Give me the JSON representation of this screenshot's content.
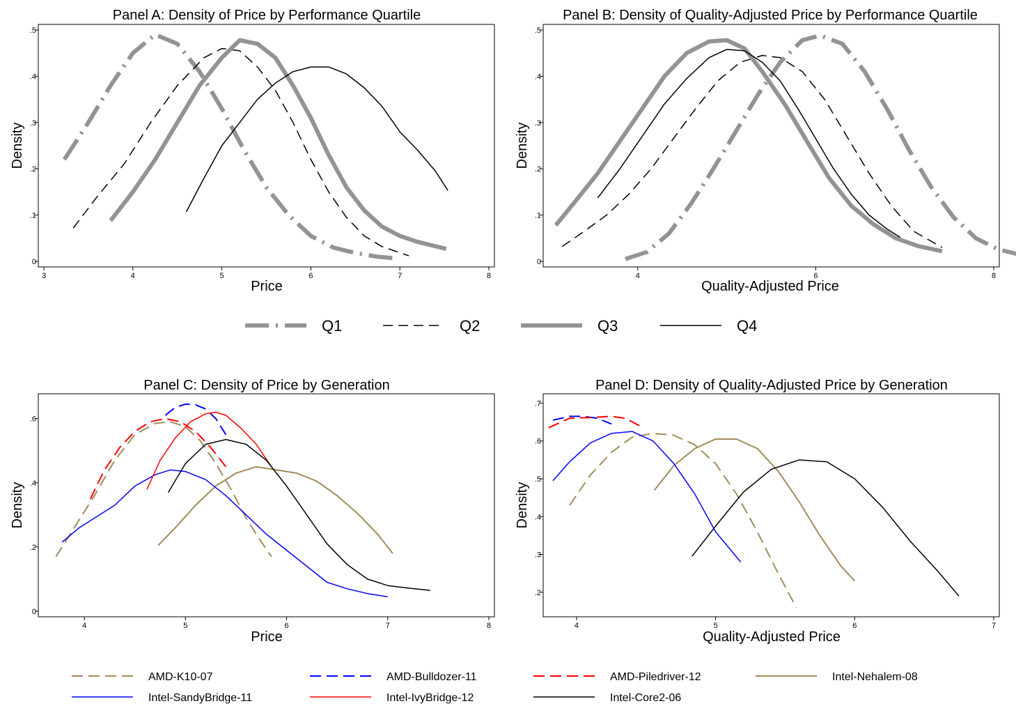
{
  "colors": {
    "gray": "#939393",
    "black": "#000000",
    "olive": "#a08b5b",
    "blue": "#0000ff",
    "red": "#ff0000"
  },
  "legend_top": [
    {
      "label": "Q1",
      "style": "q1"
    },
    {
      "label": "Q2",
      "style": "q2"
    },
    {
      "label": "Q3",
      "style": "q3"
    },
    {
      "label": "Q4",
      "style": "q4"
    }
  ],
  "legend_bottom": [
    {
      "label": "AMD-K10-07",
      "style": "k10"
    },
    {
      "label": "AMD-Bulldozer-11",
      "style": "bull"
    },
    {
      "label": "AMD-Piledriver-12",
      "style": "pile"
    },
    {
      "label": "Intel-Nehalem-08",
      "style": "neh"
    },
    {
      "label": "Intel-SandyBridge-11",
      "style": "sandy"
    },
    {
      "label": "Intel-IvyBridge-12",
      "style": "ivy"
    },
    {
      "label": "Intel-Core2-06",
      "style": "core2"
    }
  ],
  "chart_data": [
    {
      "panel": "A",
      "type": "line",
      "title": "Panel A: Density of Price by Performance Quartile",
      "xlabel": "Price",
      "ylabel": "Density",
      "xlim": [
        3,
        8
      ],
      "ylim": [
        0,
        0.5
      ],
      "xticks": [
        3,
        4,
        5,
        6,
        7,
        8
      ],
      "xticklabels": [
        "3",
        "4",
        "5",
        "6",
        "7",
        "8"
      ],
      "yticks": [
        0,
        0.1,
        0.2,
        0.3,
        0.4,
        0.5
      ],
      "yticklabels": [
        "0",
        ".1",
        ".2",
        ".3",
        ".4",
        ".5"
      ],
      "series": [
        {
          "name": "Q1",
          "style": "q1",
          "x": [
            3.23,
            3.5,
            3.75,
            4.0,
            4.25,
            4.5,
            4.75,
            5.0,
            5.25,
            5.5,
            5.75,
            6.0,
            6.25,
            6.5,
            6.75,
            6.93
          ],
          "y": [
            0.22,
            0.3,
            0.38,
            0.45,
            0.49,
            0.47,
            0.41,
            0.33,
            0.24,
            0.16,
            0.1,
            0.055,
            0.03,
            0.018,
            0.01,
            0.007
          ]
        },
        {
          "name": "Q2",
          "style": "q2",
          "x": [
            3.33,
            3.6,
            3.9,
            4.2,
            4.5,
            4.8,
            5.0,
            5.2,
            5.4,
            5.6,
            5.8,
            6.0,
            6.2,
            6.4,
            6.6,
            6.8,
            7.1
          ],
          "y": [
            0.072,
            0.14,
            0.21,
            0.3,
            0.38,
            0.44,
            0.46,
            0.455,
            0.42,
            0.37,
            0.3,
            0.22,
            0.15,
            0.095,
            0.055,
            0.032,
            0.012
          ]
        },
        {
          "name": "Q3",
          "style": "q3",
          "x": [
            3.75,
            4.0,
            4.25,
            4.5,
            4.75,
            5.0,
            5.2,
            5.4,
            5.6,
            5.8,
            6.0,
            6.2,
            6.4,
            6.6,
            6.8,
            7.0,
            7.2,
            7.52
          ],
          "y": [
            0.088,
            0.15,
            0.22,
            0.3,
            0.38,
            0.44,
            0.478,
            0.47,
            0.44,
            0.38,
            0.31,
            0.23,
            0.16,
            0.11,
            0.075,
            0.055,
            0.042,
            0.027
          ]
        },
        {
          "name": "Q4",
          "style": "q4",
          "x": [
            4.6,
            4.8,
            5.0,
            5.2,
            5.4,
            5.6,
            5.8,
            6.0,
            6.2,
            6.4,
            6.6,
            6.8,
            7.0,
            7.2,
            7.4,
            7.54
          ],
          "y": [
            0.107,
            0.18,
            0.25,
            0.3,
            0.35,
            0.385,
            0.41,
            0.42,
            0.42,
            0.405,
            0.375,
            0.335,
            0.28,
            0.24,
            0.195,
            0.153
          ]
        }
      ]
    },
    {
      "panel": "B",
      "type": "line",
      "title": "Panel B: Density of Quality-Adjusted Price by Performance Quartile",
      "xlabel": "Quality-Adjusted Price",
      "ylabel": "Density",
      "xlim": [
        3.0,
        8.0
      ],
      "ylim": [
        0,
        0.5
      ],
      "xticks": [
        4,
        6,
        8
      ],
      "xticklabels": [
        "4",
        "6",
        "8"
      ],
      "yticks": [
        0,
        0.1,
        0.2,
        0.3,
        0.4,
        0.5
      ],
      "yticklabels": [
        "0",
        ".1",
        ".2",
        ".3",
        ".4",
        ".5"
      ],
      "series": [
        {
          "name": "Q1",
          "style": "q1",
          "x": [
            3.86,
            4.1,
            4.35,
            4.6,
            4.85,
            5.1,
            5.35,
            5.6,
            5.85,
            6.05,
            6.3,
            6.55,
            6.8,
            7.05,
            7.3,
            7.55,
            7.8,
            8.05,
            8.45
          ],
          "y": [
            0.005,
            0.02,
            0.06,
            0.125,
            0.2,
            0.28,
            0.36,
            0.43,
            0.478,
            0.488,
            0.47,
            0.41,
            0.33,
            0.24,
            0.16,
            0.095,
            0.05,
            0.026,
            0.007
          ]
        },
        {
          "name": "Q2",
          "style": "q2",
          "x": [
            3.15,
            3.4,
            3.65,
            3.9,
            4.15,
            4.4,
            4.65,
            4.9,
            5.15,
            5.4,
            5.6,
            5.85,
            6.1,
            6.35,
            6.6,
            6.85,
            7.1,
            7.42
          ],
          "y": [
            0.032,
            0.065,
            0.1,
            0.145,
            0.2,
            0.265,
            0.33,
            0.39,
            0.43,
            0.445,
            0.44,
            0.41,
            0.35,
            0.27,
            0.19,
            0.12,
            0.065,
            0.03
          ]
        },
        {
          "name": "Q3",
          "style": "q3",
          "x": [
            3.08,
            3.3,
            3.55,
            3.8,
            4.05,
            4.3,
            4.55,
            4.8,
            5.0,
            5.2,
            5.4,
            5.65,
            5.9,
            6.15,
            6.4,
            6.65,
            6.9,
            7.15,
            7.42
          ],
          "y": [
            0.078,
            0.13,
            0.19,
            0.26,
            0.33,
            0.4,
            0.45,
            0.475,
            0.478,
            0.46,
            0.41,
            0.34,
            0.26,
            0.18,
            0.12,
            0.08,
            0.05,
            0.033,
            0.022
          ]
        },
        {
          "name": "Q4",
          "style": "q4",
          "x": [
            3.55,
            3.8,
            4.05,
            4.3,
            4.55,
            4.8,
            5.0,
            5.2,
            5.4,
            5.6,
            5.8,
            6.0,
            6.2,
            6.4,
            6.6,
            6.8,
            6.95
          ],
          "y": [
            0.137,
            0.2,
            0.27,
            0.34,
            0.395,
            0.44,
            0.458,
            0.455,
            0.43,
            0.39,
            0.33,
            0.265,
            0.2,
            0.145,
            0.1,
            0.07,
            0.052
          ]
        }
      ]
    },
    {
      "panel": "C",
      "type": "line",
      "title": "Panel C: Density of Price by Generation",
      "xlabel": "Price",
      "ylabel": "Density",
      "xlim": [
        3.6,
        8.0
      ],
      "ylim": [
        0,
        0.66
      ],
      "xticks": [
        4,
        5,
        6,
        7,
        8
      ],
      "xticklabels": [
        "4",
        "5",
        "6",
        "7",
        "8"
      ],
      "yticks": [
        0,
        0.2,
        0.4,
        0.6
      ],
      "yticklabels": [
        "0",
        ".2",
        ".4",
        ".6"
      ],
      "series": [
        {
          "name": "AMD-K10-07",
          "style": "k10",
          "x": [
            3.72,
            3.9,
            4.1,
            4.3,
            4.5,
            4.7,
            4.85,
            5.0,
            5.15,
            5.3,
            5.45,
            5.6,
            5.72,
            5.85
          ],
          "y": [
            0.17,
            0.26,
            0.36,
            0.47,
            0.55,
            0.585,
            0.59,
            0.575,
            0.53,
            0.46,
            0.38,
            0.29,
            0.23,
            0.17
          ]
        },
        {
          "name": "AMD-Bulldozer-11",
          "style": "bull",
          "x": [
            4.8,
            4.9,
            5.0,
            5.1,
            5.2,
            5.3,
            5.4
          ],
          "y": [
            0.61,
            0.635,
            0.645,
            0.643,
            0.63,
            0.6,
            0.55
          ]
        },
        {
          "name": "AMD-Piledriver-12",
          "style": "pile",
          "x": [
            4.06,
            4.2,
            4.35,
            4.5,
            4.65,
            4.8,
            4.95,
            5.1,
            5.25,
            5.4
          ],
          "y": [
            0.35,
            0.44,
            0.51,
            0.56,
            0.59,
            0.6,
            0.59,
            0.56,
            0.51,
            0.45
          ]
        },
        {
          "name": "Intel-Nehalem-08",
          "style": "neh",
          "x": [
            4.73,
            4.9,
            5.1,
            5.3,
            5.5,
            5.7,
            5.9,
            6.1,
            6.3,
            6.5,
            6.7,
            6.9,
            7.05
          ],
          "y": [
            0.205,
            0.26,
            0.33,
            0.39,
            0.43,
            0.45,
            0.44,
            0.43,
            0.405,
            0.36,
            0.305,
            0.24,
            0.18
          ]
        },
        {
          "name": "Intel-SandyBridge-11",
          "style": "sandy",
          "x": [
            3.78,
            3.95,
            4.1,
            4.3,
            4.5,
            4.7,
            4.85,
            5.0,
            5.2,
            5.4,
            5.6,
            5.8,
            6.0,
            6.2,
            6.4,
            6.6,
            6.8,
            7.0
          ],
          "y": [
            0.215,
            0.26,
            0.29,
            0.33,
            0.39,
            0.425,
            0.44,
            0.435,
            0.41,
            0.36,
            0.3,
            0.24,
            0.19,
            0.14,
            0.09,
            0.07,
            0.055,
            0.045
          ]
        },
        {
          "name": "Intel-IvyBridge-12",
          "style": "ivy",
          "x": [
            4.62,
            4.75,
            4.9,
            5.05,
            5.2,
            5.3,
            5.4,
            5.55,
            5.7,
            5.85
          ],
          "y": [
            0.38,
            0.47,
            0.54,
            0.59,
            0.615,
            0.62,
            0.61,
            0.57,
            0.52,
            0.45
          ]
        },
        {
          "name": "Intel-Core2-06",
          "style": "core2",
          "x": [
            4.83,
            5.0,
            5.2,
            5.4,
            5.6,
            5.8,
            6.0,
            6.2,
            6.4,
            6.6,
            6.8,
            7.0,
            7.2,
            7.42
          ],
          "y": [
            0.37,
            0.46,
            0.52,
            0.535,
            0.52,
            0.47,
            0.39,
            0.3,
            0.21,
            0.145,
            0.1,
            0.08,
            0.072,
            0.065
          ]
        }
      ]
    },
    {
      "panel": "D",
      "type": "line",
      "title": "Panel D: Density of Quality-Adjusted Price by Generation",
      "xlabel": "Quality-Adjusted Price",
      "ylabel": "Density",
      "xlim": [
        3.8,
        7.0
      ],
      "ylim": [
        0.15,
        0.71
      ],
      "xticks": [
        4,
        5,
        6,
        7
      ],
      "xticklabels": [
        "4",
        "5",
        "6",
        "7"
      ],
      "yticks": [
        0.2,
        0.3,
        0.4,
        0.5,
        0.6,
        0.7
      ],
      "yticklabels": [
        ".2",
        ".3",
        ".4",
        ".5",
        ".6",
        ".7"
      ],
      "series": [
        {
          "name": "AMD-K10-07",
          "style": "k10",
          "x": [
            3.95,
            4.1,
            4.25,
            4.4,
            4.55,
            4.7,
            4.85,
            5.0,
            5.15,
            5.3,
            5.45,
            5.58
          ],
          "y": [
            0.43,
            0.51,
            0.57,
            0.61,
            0.62,
            0.615,
            0.59,
            0.54,
            0.46,
            0.36,
            0.25,
            0.16
          ]
        },
        {
          "name": "AMD-Bulldozer-11",
          "style": "bull",
          "x": [
            3.83,
            3.95,
            4.05,
            4.15,
            4.25
          ],
          "y": [
            0.655,
            0.665,
            0.665,
            0.66,
            0.645
          ]
        },
        {
          "name": "AMD-Piledriver-12",
          "style": "pile",
          "x": [
            3.8,
            3.95,
            4.1,
            4.25,
            4.35,
            4.48
          ],
          "y": [
            0.635,
            0.66,
            0.662,
            0.665,
            0.66,
            0.635
          ]
        },
        {
          "name": "Intel-Nehalem-08",
          "style": "neh",
          "x": [
            4.56,
            4.7,
            4.85,
            5.0,
            5.15,
            5.3,
            5.45,
            5.6,
            5.75,
            5.9,
            6.0
          ],
          "y": [
            0.47,
            0.535,
            0.58,
            0.605,
            0.605,
            0.58,
            0.52,
            0.44,
            0.35,
            0.27,
            0.23
          ]
        },
        {
          "name": "Intel-SandyBridge-11",
          "style": "sandy",
          "x": [
            3.83,
            3.95,
            4.1,
            4.25,
            4.4,
            4.55,
            4.7,
            4.85,
            5.0,
            5.18
          ],
          "y": [
            0.495,
            0.545,
            0.595,
            0.62,
            0.625,
            0.6,
            0.54,
            0.46,
            0.36,
            0.28
          ]
        },
        {
          "name": "Intel-IvyBridge-12",
          "style": "ivy",
          "x": [],
          "y": []
        },
        {
          "name": "Intel-Core2-06",
          "style": "core2",
          "x": [
            4.83,
            5.0,
            5.2,
            5.4,
            5.6,
            5.8,
            6.0,
            6.2,
            6.4,
            6.6,
            6.75
          ],
          "y": [
            0.295,
            0.375,
            0.465,
            0.525,
            0.55,
            0.545,
            0.5,
            0.425,
            0.335,
            0.255,
            0.19
          ]
        }
      ]
    }
  ]
}
